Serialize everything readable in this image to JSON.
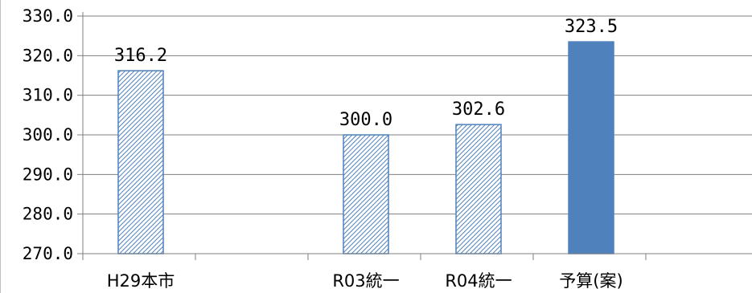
{
  "chart_data": {
    "type": "bar",
    "title": "",
    "categories": [
      "H29本市",
      "",
      "R03統一",
      "R04統一",
      "予算(案)"
    ],
    "values": [
      316.2,
      null,
      300.0,
      302.6,
      323.5
    ],
    "data_labels": [
      "316.2",
      "",
      "300.0",
      "302.6",
      "323.5"
    ],
    "bar_styles": [
      "hatched",
      "none",
      "hatched",
      "hatched",
      "solid"
    ],
    "ylim": [
      270,
      330
    ],
    "yticks": [
      "270.0",
      "280.0",
      "290.0",
      "300.0",
      "310.0",
      "320.0",
      "330.0"
    ],
    "grid": true,
    "colors": {
      "solid": "#4f81bd",
      "hatch_line": "#4f81bd",
      "hatch_bg": "#ffffff",
      "grid": "#7f7f7f",
      "axis": "#7f7f7f"
    }
  }
}
